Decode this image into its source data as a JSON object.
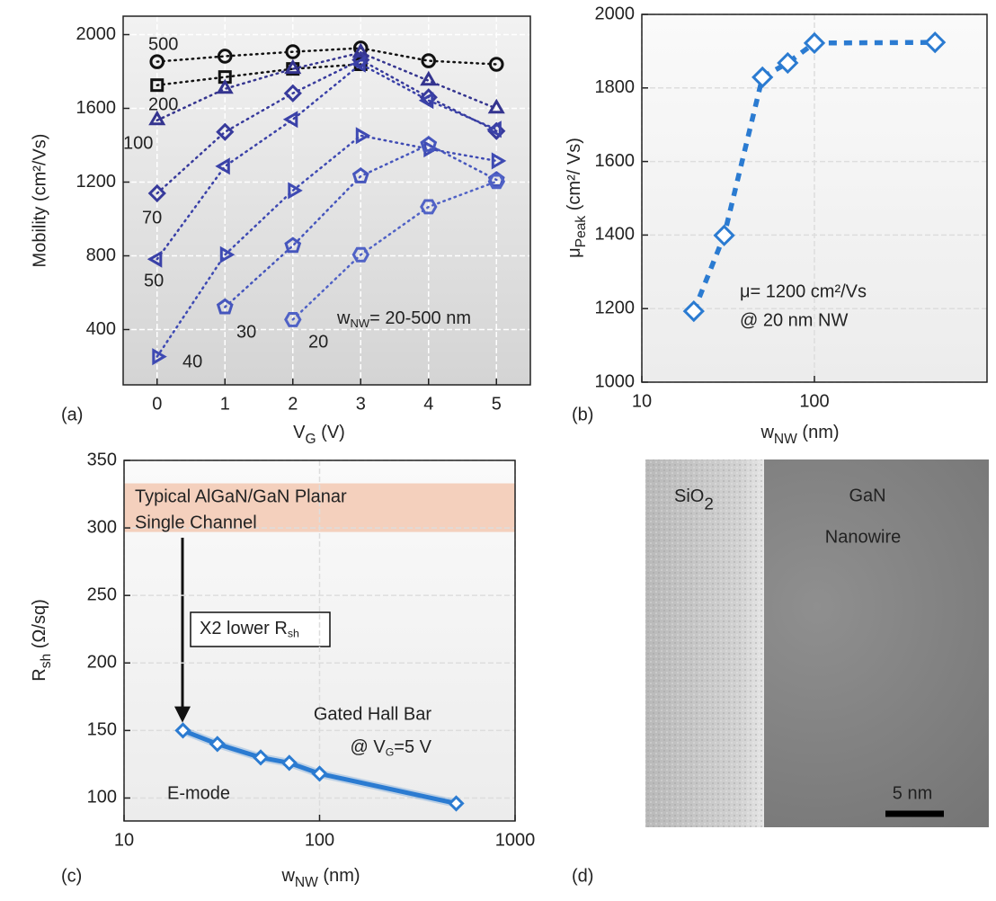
{
  "chart_data": [
    {
      "type": "line",
      "panel_label": "(a)",
      "x_label": {
        "main": "V",
        "sub": "G",
        "tail": " (V)"
      },
      "y_label": "Mobility (cm²/Vs)",
      "x": [
        0,
        1,
        2,
        3,
        4,
        5
      ],
      "xlim": [
        -0.5,
        5.5
      ],
      "xticks": [
        0,
        1,
        2,
        3,
        4,
        5
      ],
      "ylim": [
        100,
        2100
      ],
      "yticks": [
        400,
        800,
        1200,
        1600,
        2000
      ],
      "grid": true,
      "series": [
        {
          "name": "500",
          "color": "#111111",
          "marker": "circle",
          "values": [
            1853,
            1883,
            1907,
            1927,
            1858,
            1839
          ]
        },
        {
          "name": "200",
          "color": "#111111",
          "marker": "square",
          "values": [
            1726,
            1770,
            1814,
            1839,
            null,
            null
          ]
        },
        {
          "name": "100",
          "color": "#34348f",
          "marker": "triangle-up",
          "values": [
            1535,
            1706,
            1814,
            1902,
            1750,
            1599
          ]
        },
        {
          "name": "70",
          "color": "#373a9c",
          "marker": "diamond",
          "values": [
            1139,
            1472,
            1682,
            1863,
            1660,
            1477
          ]
        },
        {
          "name": "50",
          "color": "#3a41a8",
          "marker": "triangle-left",
          "values": [
            782,
            1286,
            1540,
            1840,
            1643,
            1486
          ]
        },
        {
          "name": "40",
          "color": "#3e4ab3",
          "marker": "triangle-right",
          "values": [
            253,
            806,
            1154,
            1452,
            1380,
            1315
          ]
        },
        {
          "name": "30",
          "color": "#4656bd",
          "marker": "pentagon",
          "values": [
            null,
            522,
            855,
            1232,
            1403,
            1212
          ]
        },
        {
          "name": "20",
          "color": "#5062c6",
          "marker": "hexagon",
          "values": [
            null,
            null,
            454,
            806,
            1066,
            1203
          ]
        }
      ],
      "annotations": [
        {
          "main": "w",
          "sub": "NW",
          "tail": "= 20-500 nm"
        }
      ]
    },
    {
      "type": "line",
      "panel_label": "(b)",
      "x_label": {
        "main": "w",
        "sub": "NW",
        "tail": " (nm)"
      },
      "y_label": {
        "main": "μ",
        "sub": "Peak",
        "tail": " (cm²/ Vs)"
      },
      "x": [
        20,
        30,
        50,
        70,
        100,
        500
      ],
      "values": [
        1193,
        1399,
        1829,
        1868,
        1922,
        1924
      ],
      "color": "#2b7bd1",
      "xscale": "log",
      "xlim": [
        10,
        1000
      ],
      "xticks": [
        10,
        100
      ],
      "ylim": [
        1000,
        2000
      ],
      "yticks": [
        1000,
        1200,
        1400,
        1600,
        1800,
        2000
      ],
      "grid": true,
      "annotations": [
        "μ= 1200 cm²/Vs",
        "@ 20 nm NW"
      ]
    },
    {
      "type": "line",
      "panel_label": "(c)",
      "x_label": {
        "main": "w",
        "sub": "NW",
        "tail": " (nm)"
      },
      "y_label": {
        "main": "R",
        "sub": "sh",
        "tail": "  (Ω/sq)"
      },
      "x": [
        20,
        30,
        50,
        70,
        100,
        500
      ],
      "values": [
        150,
        140,
        130,
        126,
        118,
        96
      ],
      "color": "#2b7bd1",
      "xscale": "log",
      "xlim": [
        10,
        1000
      ],
      "xticks": [
        10,
        100,
        1000
      ],
      "ylim": [
        83,
        350
      ],
      "yticks": [
        100,
        150,
        200,
        250,
        300,
        350
      ],
      "grid": true,
      "band": [
        297,
        333
      ],
      "band_color": "#f3c9b3",
      "annotations": [
        "Typical AlGaN/GaN  Planar",
        "Single Channel",
        {
          "main": "X2 lower  R",
          "sub": "sh"
        },
        "Gated Hall Bar",
        {
          "main": "@ V",
          "sub": "G",
          "tail": "=5 V"
        },
        "E-mode"
      ]
    }
  ],
  "image": {
    "panel_label": "(d)",
    "labels": [
      {
        "main": "SiO",
        "sub": "2"
      },
      "GaN",
      "Nanowire",
      "5 nm"
    ]
  }
}
